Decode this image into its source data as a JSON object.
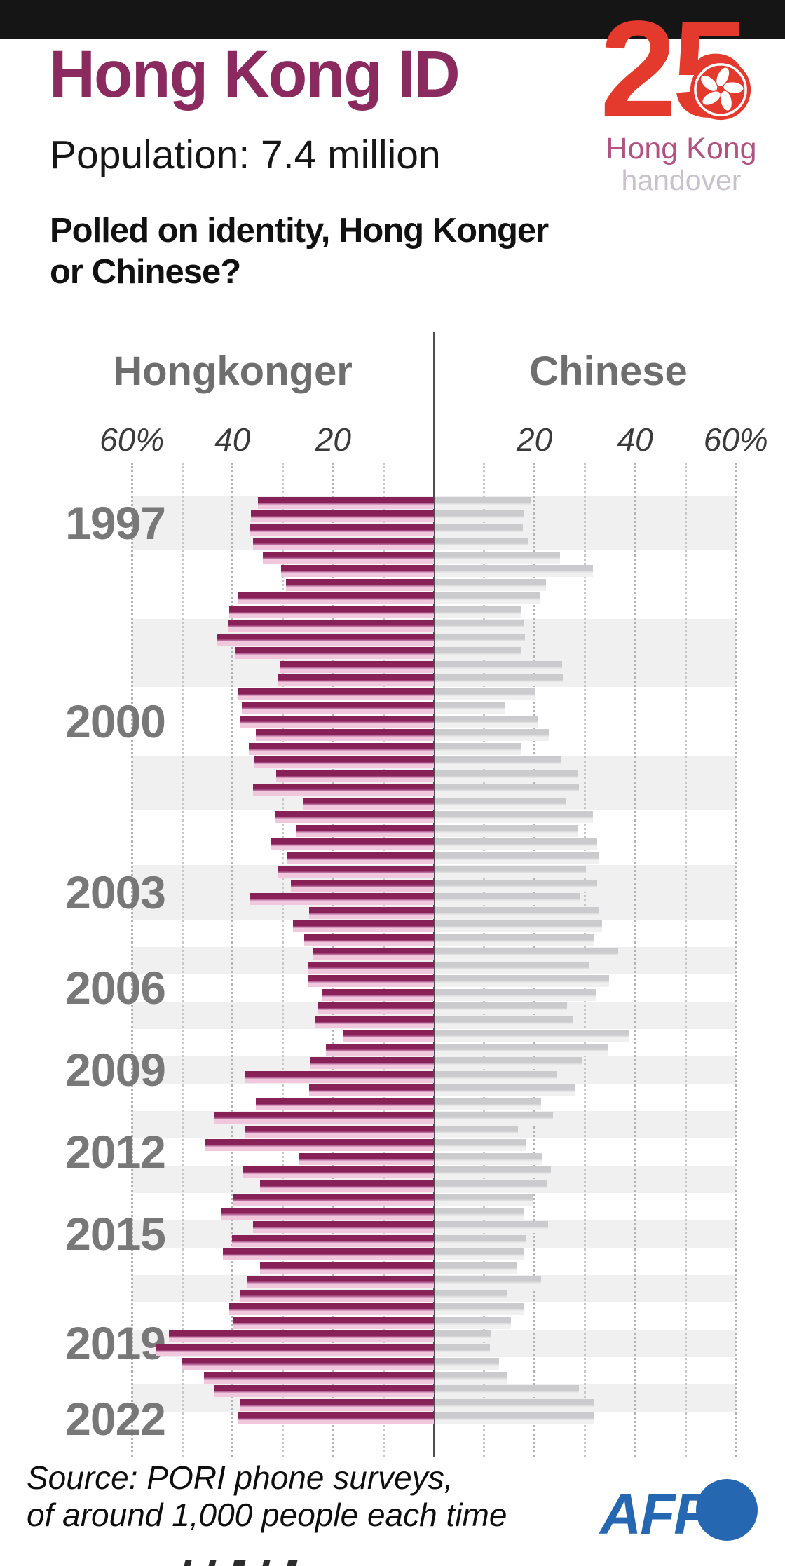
{
  "header": {
    "title": "Hong Kong ID",
    "population": "Population: 7.4 million",
    "logo": {
      "number": "25",
      "line1": "Hong Kong",
      "line2": "handover"
    }
  },
  "question": {
    "line1": "Polled on identity, Hong Konger",
    "line2": "or Chinese?"
  },
  "footer": {
    "source_line1": "Source: PORI phone surveys,",
    "source_line2": "of around 1,000 people each time",
    "afp_label": "AFP"
  },
  "colors": {
    "title": "#8b2a5f",
    "logo_red": "#e43a2e",
    "logo_pink": "#b35180",
    "logo_gray": "#c9c2cc",
    "header_gray": "#6e6e6e",
    "year_gray": "#787878",
    "hongkonger_dark": "#872158",
    "hongkonger_pale": "#f1c7de",
    "chinese_dark": "#cbcbcd",
    "chinese_pale": "#f0f0f1",
    "band": "#f0f0f0",
    "afp_blue": "#2567b0"
  },
  "chart_data": {
    "type": "bar",
    "subtype": "diverging-horizontal",
    "title": "Polled on identity, Hong Konger or Chinese?",
    "unit": "%",
    "legend": [
      "Hongkonger",
      "Chinese"
    ],
    "legend_position": "top",
    "grid": true,
    "axis": {
      "range_each_side": [
        0,
        60
      ],
      "gridline_step": 10,
      "ticks": [
        {
          "value": -60,
          "label": "60%"
        },
        {
          "value": -40,
          "label": "40"
        },
        {
          "value": -20,
          "label": "20"
        },
        {
          "value": 20,
          "label": "20"
        },
        {
          "value": 40,
          "label": "40"
        },
        {
          "value": 60,
          "label": "60%"
        }
      ]
    },
    "year_labels_shown": [
      1997,
      2000,
      2003,
      2006,
      2009,
      2012,
      2015,
      2019,
      2022
    ],
    "shaded_band_years": "odd",
    "surveys": [
      {
        "year": 1997,
        "hongkonger": 35.0,
        "chinese": 18.9
      },
      {
        "year": 1997,
        "hongkonger": 36.3,
        "chinese": 17.6
      },
      {
        "year": 1997,
        "hongkonger": 36.5,
        "chinese": 17.4
      },
      {
        "year": 1997,
        "hongkonger": 35.9,
        "chinese": 18.5
      },
      {
        "year": 1998,
        "hongkonger": 34.0,
        "chinese": 24.8
      },
      {
        "year": 1998,
        "hongkonger": 30.4,
        "chinese": 31.3
      },
      {
        "year": 1998,
        "hongkonger": 29.4,
        "chinese": 22.0
      },
      {
        "year": 1998,
        "hongkonger": 39.0,
        "chinese": 20.7
      },
      {
        "year": 1998,
        "hongkonger": 40.6,
        "chinese": 17.1
      },
      {
        "year": 1999,
        "hongkonger": 40.8,
        "chinese": 17.6
      },
      {
        "year": 1999,
        "hongkonger": 43.2,
        "chinese": 17.8
      },
      {
        "year": 1999,
        "hongkonger": 39.6,
        "chinese": 17.1
      },
      {
        "year": 1999,
        "hongkonger": 30.5,
        "chinese": 25.2
      },
      {
        "year": 1999,
        "hongkonger": 31.1,
        "chinese": 25.4
      },
      {
        "year": 2000,
        "hongkonger": 38.9,
        "chinese": 19.8
      },
      {
        "year": 2000,
        "hongkonger": 38.2,
        "chinese": 13.8
      },
      {
        "year": 2000,
        "hongkonger": 38.4,
        "chinese": 20.4
      },
      {
        "year": 2000,
        "hongkonger": 35.4,
        "chinese": 22.6
      },
      {
        "year": 2000,
        "hongkonger": 36.8,
        "chinese": 17.2
      },
      {
        "year": 2001,
        "hongkonger": 35.7,
        "chinese": 25.0
      },
      {
        "year": 2001,
        "hongkonger": 31.3,
        "chinese": 28.4
      },
      {
        "year": 2001,
        "hongkonger": 35.9,
        "chinese": 28.6
      },
      {
        "year": 2001,
        "hongkonger": 26.1,
        "chinese": 26.0
      },
      {
        "year": 2002,
        "hongkonger": 31.6,
        "chinese": 31.4
      },
      {
        "year": 2002,
        "hongkonger": 27.4,
        "chinese": 28.4
      },
      {
        "year": 2002,
        "hongkonger": 32.3,
        "chinese": 32.2
      },
      {
        "year": 2002,
        "hongkonger": 29.1,
        "chinese": 32.4
      },
      {
        "year": 2003,
        "hongkonger": 31.0,
        "chinese": 29.9
      },
      {
        "year": 2003,
        "hongkonger": 28.4,
        "chinese": 32.2
      },
      {
        "year": 2003,
        "hongkonger": 36.6,
        "chinese": 28.8
      },
      {
        "year": 2003,
        "hongkonger": 24.8,
        "chinese": 32.5
      },
      {
        "year": 2004,
        "hongkonger": 28.0,
        "chinese": 33.1
      },
      {
        "year": 2004,
        "hongkonger": 25.8,
        "chinese": 31.6
      },
      {
        "year": 2005,
        "hongkonger": 24.1,
        "chinese": 36.4
      },
      {
        "year": 2005,
        "hongkonger": 25.0,
        "chinese": 30.5
      },
      {
        "year": 2006,
        "hongkonger": 25.0,
        "chinese": 34.5
      },
      {
        "year": 2006,
        "hongkonger": 22.2,
        "chinese": 32.0
      },
      {
        "year": 2007,
        "hongkonger": 23.1,
        "chinese": 26.2
      },
      {
        "year": 2007,
        "hongkonger": 23.5,
        "chinese": 27.3
      },
      {
        "year": 2008,
        "hongkonger": 18.1,
        "chinese": 38.5
      },
      {
        "year": 2008,
        "hongkonger": 21.5,
        "chinese": 34.2
      },
      {
        "year": 2009,
        "hongkonger": 24.6,
        "chinese": 29.3
      },
      {
        "year": 2009,
        "hongkonger": 37.5,
        "chinese": 24.1
      },
      {
        "year": 2010,
        "hongkonger": 24.8,
        "chinese": 27.8
      },
      {
        "year": 2010,
        "hongkonger": 35.4,
        "chinese": 21.0
      },
      {
        "year": 2011,
        "hongkonger": 43.8,
        "chinese": 23.4
      },
      {
        "year": 2011,
        "hongkonger": 37.5,
        "chinese": 16.5
      },
      {
        "year": 2012,
        "hongkonger": 45.5,
        "chinese": 18.1
      },
      {
        "year": 2012,
        "hongkonger": 26.8,
        "chinese": 21.3
      },
      {
        "year": 2013,
        "hongkonger": 37.9,
        "chinese": 23.0
      },
      {
        "year": 2013,
        "hongkonger": 34.5,
        "chinese": 22.1
      },
      {
        "year": 2014,
        "hongkonger": 39.9,
        "chinese": 19.4
      },
      {
        "year": 2014,
        "hongkonger": 42.2,
        "chinese": 17.7
      },
      {
        "year": 2015,
        "hongkonger": 36.0,
        "chinese": 22.4
      },
      {
        "year": 2015,
        "hongkonger": 40.1,
        "chinese": 18.1
      },
      {
        "year": 2016,
        "hongkonger": 41.9,
        "chinese": 17.7
      },
      {
        "year": 2016,
        "hongkonger": 34.5,
        "chinese": 16.3
      },
      {
        "year": 2017,
        "hongkonger": 37.1,
        "chinese": 21.1
      },
      {
        "year": 2017,
        "hongkonger": 38.6,
        "chinese": 14.4
      },
      {
        "year": 2018,
        "hongkonger": 40.6,
        "chinese": 17.6
      },
      {
        "year": 2018,
        "hongkonger": 39.9,
        "chinese": 15.0
      },
      {
        "year": 2019,
        "hongkonger": 52.7,
        "chinese": 11.2
      },
      {
        "year": 2019,
        "hongkonger": 55.2,
        "chinese": 10.9
      },
      {
        "year": 2020,
        "hongkonger": 50.2,
        "chinese": 12.7
      },
      {
        "year": 2020,
        "hongkonger": 45.7,
        "chinese": 14.4
      },
      {
        "year": 2021,
        "hongkonger": 43.8,
        "chinese": 28.6
      },
      {
        "year": 2021,
        "hongkonger": 38.4,
        "chinese": 31.6
      },
      {
        "year": 2022,
        "hongkonger": 38.8,
        "chinese": 31.5
      }
    ]
  }
}
